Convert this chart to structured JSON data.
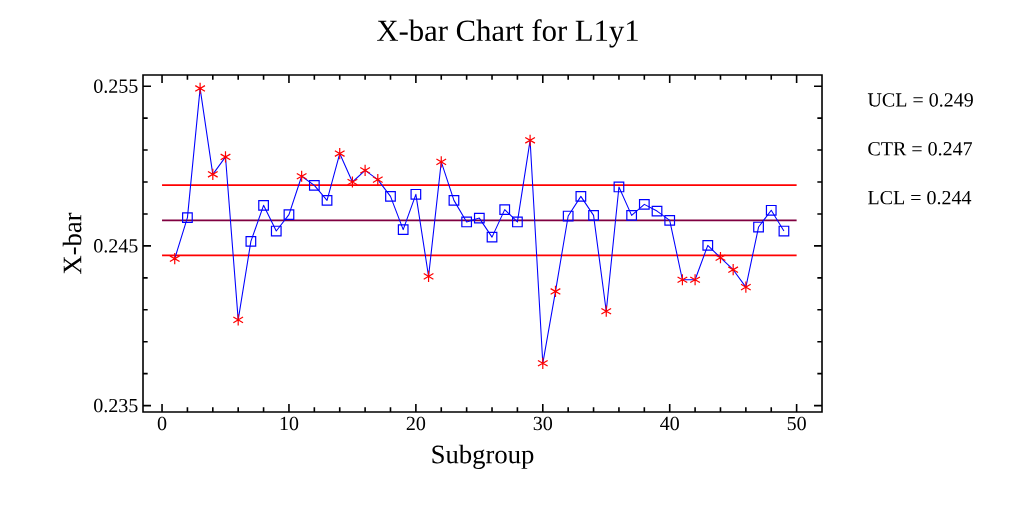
{
  "chart_data": {
    "type": "line",
    "title": "X-bar Chart for L1y1",
    "xlabel": "Subgroup",
    "ylabel": "X-bar",
    "x": [
      1,
      2,
      3,
      4,
      5,
      6,
      7,
      8,
      9,
      10,
      11,
      12,
      13,
      14,
      15,
      16,
      17,
      18,
      19,
      20,
      21,
      22,
      23,
      24,
      25,
      26,
      27,
      28,
      29,
      30,
      31,
      32,
      33,
      34,
      35,
      36,
      37,
      38,
      39,
      40,
      41,
      42,
      43,
      44,
      45,
      46,
      47,
      48,
      49
    ],
    "xlim": [
      -1.5,
      52
    ],
    "ylim": [
      0.2346,
      0.2557
    ],
    "xticks": [
      0,
      {
        "value": 2,
        "label": null
      },
      {
        "value": 4,
        "label": null
      },
      {
        "value": 6,
        "label": null
      },
      {
        "value": 8,
        "label": null
      },
      10,
      {
        "value": 12,
        "label": null
      },
      {
        "value": 14,
        "label": null
      },
      {
        "value": 16,
        "label": null
      },
      {
        "value": 18,
        "label": null
      },
      20,
      {
        "value": 22,
        "label": null
      },
      {
        "value": 24,
        "label": null
      },
      {
        "value": 26,
        "label": null
      },
      {
        "value": 28,
        "label": null
      },
      30,
      {
        "value": 32,
        "label": null
      },
      {
        "value": 34,
        "label": null
      },
      {
        "value": 36,
        "label": null
      },
      {
        "value": 38,
        "label": null
      },
      40,
      {
        "value": 42,
        "label": null
      },
      {
        "value": 44,
        "label": null
      },
      {
        "value": 46,
        "label": null
      },
      {
        "value": 48,
        "label": null
      },
      50
    ],
    "yticks": [
      0.235,
      {
        "value": 0.237,
        "label": null
      },
      {
        "value": 0.239,
        "label": null
      },
      {
        "value": 0.241,
        "label": null
      },
      {
        "value": 0.243,
        "label": null
      },
      0.245,
      {
        "value": 0.247,
        "label": null
      },
      {
        "value": 0.249,
        "label": null
      },
      {
        "value": 0.251,
        "label": null
      },
      {
        "value": 0.253,
        "label": null
      },
      0.255
    ],
    "series": [
      {
        "color": "#0000ff",
        "marker": "none",
        "values": [
          0.2442,
          0.24677,
          0.25486,
          0.24948,
          0.25057,
          0.24037,
          0.24528,
          0.24754,
          0.24593,
          0.24696,
          0.24936,
          0.24879,
          0.24785,
          0.25078,
          0.249,
          0.24973,
          0.24915,
          0.2481,
          0.24602,
          0.24823,
          0.24309,
          0.25026,
          0.24785,
          0.2465,
          0.24674,
          0.24555,
          0.24727,
          0.2465,
          0.25161,
          0.23765,
          0.24215,
          0.24687,
          0.2481,
          0.24691,
          0.24091,
          0.24869,
          0.24691,
          0.2476,
          0.24718,
          0.2466,
          0.24288,
          0.24288,
          0.24503,
          0.24426,
          0.24351,
          0.24242,
          0.24618,
          0.24723,
          0.24593
        ]
      },
      {
        "type": "scatter",
        "color": "#0000ff",
        "marker": "square",
        "values": [
          null,
          0.24677,
          null,
          null,
          null,
          null,
          0.24528,
          0.24754,
          0.24593,
          0.24696,
          null,
          0.24879,
          0.24785,
          null,
          null,
          null,
          null,
          0.2481,
          0.24602,
          0.24823,
          null,
          null,
          0.24785,
          0.2465,
          0.24674,
          0.24555,
          0.24727,
          0.2465,
          null,
          null,
          null,
          0.24687,
          0.2481,
          0.24691,
          null,
          0.24869,
          0.24691,
          0.2476,
          0.24718,
          0.2466,
          null,
          null,
          0.24503,
          null,
          null,
          null,
          0.24618,
          0.24723,
          0.24593
        ]
      },
      {
        "type": "scatter",
        "color": "#ff0000",
        "marker": "cross",
        "values": [
          0.2442,
          null,
          0.25486,
          0.24948,
          0.25057,
          0.24037,
          null,
          null,
          null,
          null,
          0.24936,
          null,
          null,
          0.25078,
          0.249,
          0.24973,
          0.24915,
          null,
          null,
          null,
          0.24309,
          0.25026,
          null,
          null,
          null,
          null,
          null,
          null,
          0.25161,
          0.23765,
          0.24215,
          null,
          null,
          null,
          0.24091,
          null,
          null,
          null,
          null,
          null,
          0.24288,
          0.24288,
          null,
          0.24426,
          0.24351,
          0.24242,
          null,
          null,
          null
        ]
      }
    ],
    "ref_lines": [
      {
        "axis": "y",
        "value": 0.2488,
        "color": "#ff0000"
      },
      {
        "axis": "y",
        "value": 0.2466,
        "color": "#800040"
      },
      {
        "axis": "y",
        "value": 0.2444,
        "color": "#ff0000"
      }
    ],
    "annotations": [
      "UCL = 0.249",
      "CTR = 0.247",
      "LCL = 0.244"
    ]
  }
}
